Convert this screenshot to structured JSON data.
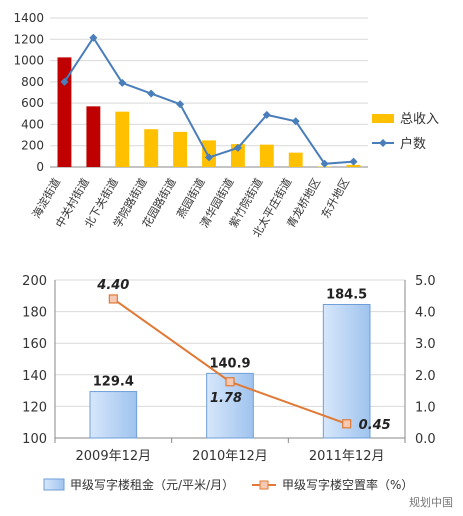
{
  "chart_data": [
    {
      "type": "bar",
      "categories": [
        "海淀街道",
        "中关村街道",
        "北下关街道",
        "学院路街道",
        "花园路街道",
        "燕园街道",
        "清华园街道",
        "紫竹院街道",
        "北太平庄街道",
        "青龙桥地区",
        "东升地区"
      ],
      "series": [
        {
          "name": "总收入",
          "type": "bar",
          "values": [
            1030,
            570,
            520,
            355,
            330,
            250,
            215,
            210,
            135,
            5,
            20
          ],
          "colors": [
            "#c00000",
            "#c00000",
            "#ffc000",
            "#ffc000",
            "#ffc000",
            "#ffc000",
            "#ffc000",
            "#ffc000",
            "#ffc000",
            "#ffc000",
            "#ffc000"
          ]
        },
        {
          "name": "户数",
          "type": "line",
          "values": [
            800,
            1215,
            790,
            690,
            590,
            90,
            180,
            490,
            430,
            30,
            50
          ],
          "color": "#4a7ebb"
        }
      ],
      "ylim": [
        0,
        1400
      ],
      "yticks": [
        "0",
        "200",
        "400",
        "600",
        "800",
        "1000",
        "1200",
        "1400"
      ],
      "grid": true,
      "legend": "right"
    },
    {
      "type": "bar",
      "categories": [
        "2009年12月",
        "2010年12月",
        "2011年12月"
      ],
      "series": [
        {
          "name": "甲级写字楼租金（元/平米/月）",
          "type": "bar",
          "axis": "left",
          "values": [
            129.4,
            140.9,
            184.5
          ],
          "labels": [
            "129.4",
            "140.9",
            "184.5"
          ],
          "color": "#b8d4f5"
        },
        {
          "name": "甲级写字楼空置率（%）",
          "type": "line",
          "axis": "right",
          "values": [
            4.4,
            1.78,
            0.45
          ],
          "labels": [
            "4.40",
            "1.78",
            "0.45"
          ],
          "color": "#e07a36"
        }
      ],
      "ylim": [
        100,
        200
      ],
      "yticks": [
        "100",
        "120",
        "140",
        "160",
        "180",
        "200"
      ],
      "y2lim": [
        0,
        5
      ],
      "y2ticks": [
        "0.0",
        "1.0",
        "2.0",
        "3.0",
        "4.0",
        "5.0"
      ],
      "grid": true,
      "legend": "bottom"
    }
  ],
  "watermark": "规划中国"
}
